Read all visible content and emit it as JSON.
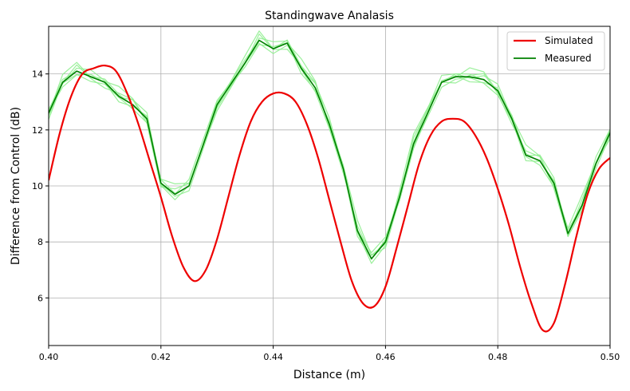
{
  "chart_data": {
    "type": "line",
    "title": "Standingwave Analasis",
    "xlabel": "Distance (m)",
    "ylabel": "Difference from Control (dB)",
    "xlim": [
      0.4,
      0.5
    ],
    "ylim": [
      4.3,
      15.7
    ],
    "xticks": [
      0.4,
      0.42,
      0.44,
      0.46,
      0.48,
      0.5
    ],
    "xtick_labels": [
      "0.40",
      "0.42",
      "0.44",
      "0.46",
      "0.48",
      "0.50"
    ],
    "yticks": [
      6,
      8,
      10,
      12,
      14
    ],
    "ytick_labels": [
      "6",
      "8",
      "10",
      "12",
      "14"
    ],
    "grid": true,
    "legend_position": "top-right",
    "legend": [
      {
        "label": "Simulated",
        "color": "#ee0000"
      },
      {
        "label": "Measured",
        "color": "#008000"
      }
    ],
    "simulated": {
      "color": "#ee0000",
      "x": [
        0.4,
        0.402,
        0.404,
        0.406,
        0.408,
        0.41,
        0.412,
        0.414,
        0.416,
        0.418,
        0.42,
        0.422,
        0.424,
        0.426,
        0.428,
        0.43,
        0.432,
        0.434,
        0.436,
        0.438,
        0.44,
        0.442,
        0.444,
        0.446,
        0.448,
        0.45,
        0.452,
        0.454,
        0.456,
        0.458,
        0.46,
        0.462,
        0.464,
        0.466,
        0.468,
        0.47,
        0.472,
        0.474,
        0.476,
        0.478,
        0.48,
        0.482,
        0.484,
        0.486,
        0.488,
        0.49,
        0.492,
        0.494,
        0.496,
        0.498,
        0.5
      ],
      "y": [
        10.2,
        11.9,
        13.2,
        14.0,
        14.2,
        14.3,
        14.1,
        13.3,
        12.2,
        10.9,
        9.6,
        8.2,
        7.1,
        6.6,
        7.0,
        8.1,
        9.6,
        11.1,
        12.3,
        13.0,
        13.3,
        13.3,
        13.0,
        12.2,
        11.0,
        9.5,
        8.0,
        6.6,
        5.8,
        5.7,
        6.4,
        7.8,
        9.3,
        10.8,
        11.8,
        12.3,
        12.4,
        12.3,
        11.8,
        11.0,
        9.9,
        8.6,
        7.1,
        5.8,
        4.85,
        5.1,
        6.5,
        8.2,
        9.7,
        10.6,
        11.0
      ]
    },
    "measured": {
      "color": "#008000",
      "x": [
        0.4,
        0.4025,
        0.405,
        0.4075,
        0.41,
        0.4125,
        0.415,
        0.4175,
        0.42,
        0.4225,
        0.425,
        0.43,
        0.435,
        0.4375,
        0.44,
        0.4425,
        0.445,
        0.4475,
        0.45,
        0.4525,
        0.455,
        0.4575,
        0.46,
        0.4625,
        0.465,
        0.47,
        0.4725,
        0.475,
        0.4775,
        0.48,
        0.4825,
        0.485,
        0.4875,
        0.49,
        0.4925,
        0.495,
        0.4975,
        0.5
      ],
      "y": [
        12.6,
        13.7,
        14.1,
        13.9,
        13.7,
        13.2,
        12.9,
        12.4,
        10.1,
        9.7,
        10.0,
        12.9,
        14.4,
        15.2,
        14.9,
        15.1,
        14.2,
        13.5,
        12.2,
        10.6,
        8.4,
        7.4,
        8.0,
        9.6,
        11.5,
        13.7,
        13.9,
        13.9,
        13.8,
        13.4,
        12.4,
        11.1,
        10.9,
        10.1,
        8.3,
        9.3,
        10.8,
        11.9
      ]
    },
    "measured_repeats": {
      "color": "#90ee90",
      "count": 6,
      "deviation": 0.15
    }
  }
}
